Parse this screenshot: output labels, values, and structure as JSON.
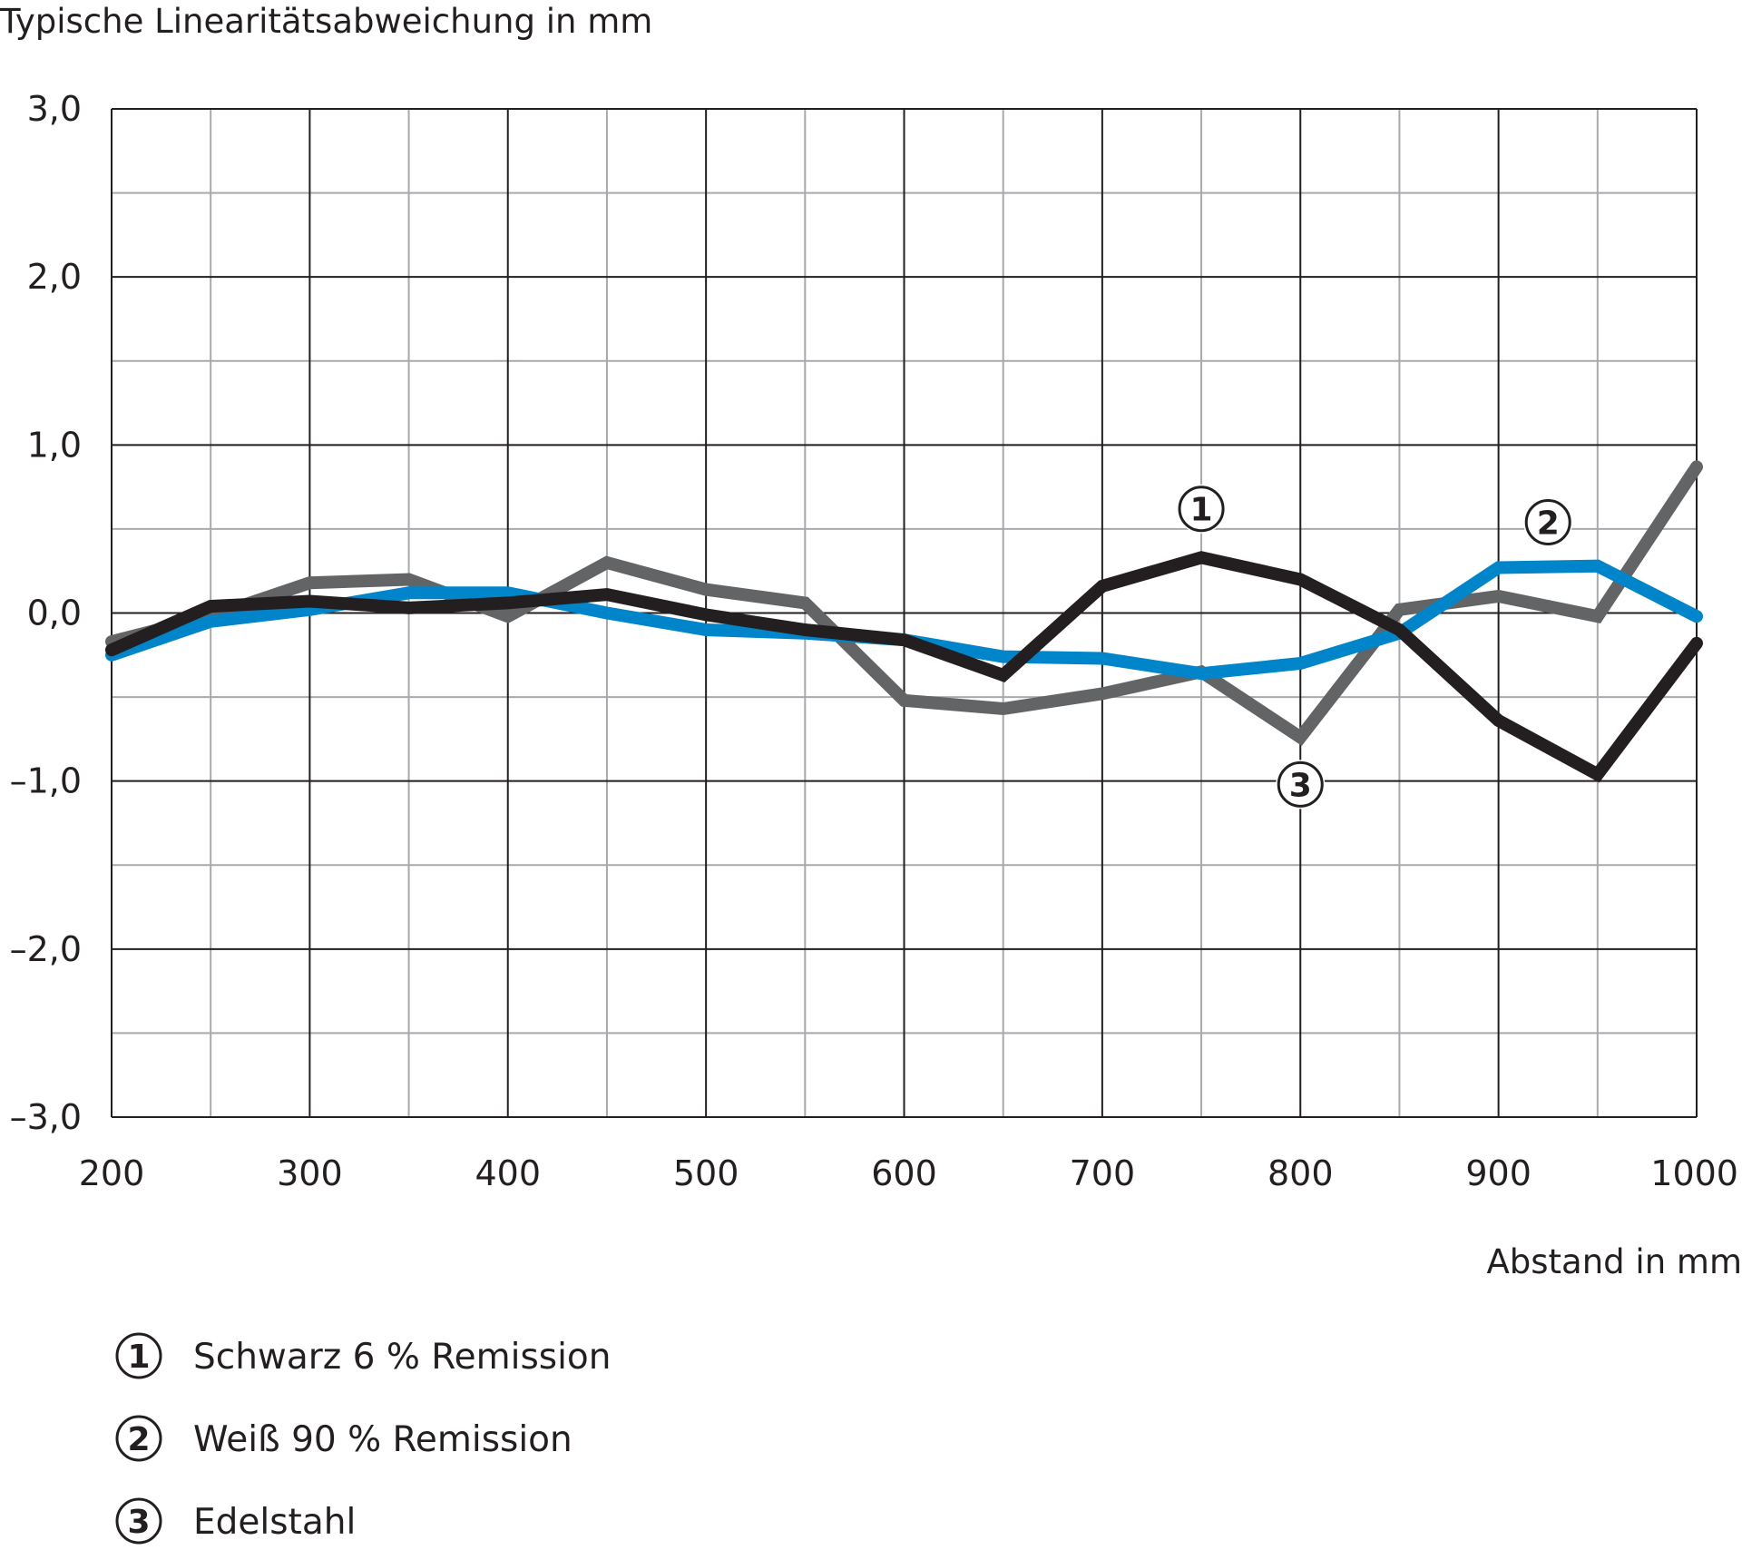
{
  "chart_data": {
    "type": "line",
    "ylabel": "Typische Linearitätsabweichung in mm",
    "xlabel": "Abstand in mm",
    "xlim": [
      200,
      1000
    ],
    "ylim": [
      -3.0,
      3.0
    ],
    "grid": true,
    "x_ticks": [
      200,
      300,
      400,
      500,
      600,
      700,
      800,
      900,
      1000
    ],
    "x_tick_labels": [
      "200",
      "300",
      "400",
      "500",
      "600",
      "700",
      "800",
      "900",
      "1000"
    ],
    "y_ticks": [
      3.0,
      2.0,
      1.0,
      0.0,
      -1.0,
      -2.0,
      -3.0
    ],
    "y_tick_labels": [
      "3,0",
      "2,0",
      "1,0",
      "0,0",
      "–1,0",
      "–2,0",
      "–3,0"
    ],
    "x": [
      200,
      250,
      300,
      350,
      400,
      450,
      500,
      550,
      600,
      650,
      700,
      750,
      800,
      850,
      900,
      950,
      1000
    ],
    "series": [
      {
        "id": "s3",
        "name": "Edelstahl",
        "marker": "3",
        "color": "#636466",
        "values": [
          -0.17,
          -0.02,
          0.18,
          0.2,
          -0.02,
          0.3,
          0.14,
          0.06,
          -0.52,
          -0.57,
          -0.48,
          -0.35,
          -0.74,
          0.02,
          0.1,
          -0.02,
          0.87
        ]
      },
      {
        "id": "s2",
        "name": "Weiß 90 % Remission",
        "marker": "2",
        "color": "#0085ca",
        "values": [
          -0.25,
          -0.05,
          0.02,
          0.12,
          0.12,
          0.0,
          -0.1,
          -0.12,
          -0.16,
          -0.26,
          -0.27,
          -0.36,
          -0.3,
          -0.12,
          0.27,
          0.28,
          -0.02
        ]
      },
      {
        "id": "s1",
        "name": "Schwarz 6 % Remission",
        "marker": "1",
        "color": "#231f20",
        "values": [
          -0.22,
          0.04,
          0.07,
          0.03,
          0.06,
          0.11,
          -0.01,
          -0.1,
          -0.16,
          -0.37,
          0.16,
          0.33,
          0.2,
          -0.1,
          -0.64,
          -0.96,
          -0.18
        ]
      }
    ],
    "annotations": [
      {
        "series": "s1",
        "marker": "1",
        "x": 750,
        "y": 0.62
      },
      {
        "series": "s2",
        "marker": "2",
        "x": 925,
        "y": 0.54
      },
      {
        "series": "s3",
        "marker": "3",
        "x": 800,
        "y": -1.02
      }
    ],
    "legend": {
      "placement": "bottom-left",
      "items": [
        {
          "marker": "1",
          "label": "Schwarz 6 % Remission"
        },
        {
          "marker": "2",
          "label": "Weiß 90 % Remission"
        },
        {
          "marker": "3",
          "label": "Edelstahl"
        }
      ]
    }
  }
}
